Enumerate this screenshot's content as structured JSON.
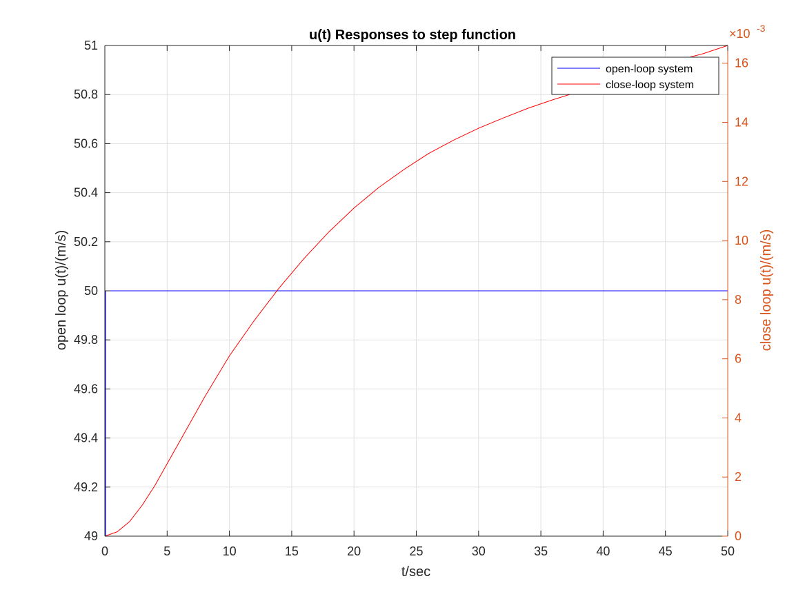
{
  "chart_data": {
    "type": "line",
    "title": "u(t) Responses to step function",
    "xlabel": "t/sec",
    "ylabel_left": "open loop u(t)/(m/s)",
    "ylabel_right": "close loop u(t)/(m/s)",
    "right_exponent_base": "×10",
    "right_exponent_power": "-3",
    "xlim": [
      0,
      50
    ],
    "ylim_left": [
      49,
      51
    ],
    "ylim_right": [
      0,
      0.0166
    ],
    "x_ticks": [
      "0",
      "5",
      "10",
      "15",
      "20",
      "25",
      "30",
      "35",
      "40",
      "45",
      "50"
    ],
    "left_ticks": [
      "49",
      "49.2",
      "49.4",
      "49.6",
      "49.8",
      "50",
      "50.2",
      "50.4",
      "50.6",
      "50.8",
      "51"
    ],
    "right_ticks": [
      "0",
      "2",
      "4",
      "6",
      "8",
      "10",
      "12",
      "14",
      "16"
    ],
    "grid": true,
    "legend_position": "top-right",
    "colors": {
      "open_loop": "#0000ff",
      "close_loop": "#ff0000",
      "right_axis": "#d95319",
      "left_axis": "#262626",
      "grid": "#e0e0e0"
    },
    "series": [
      {
        "name": "open-loop system",
        "axis": "left",
        "x": [
          0,
          50
        ],
        "y": [
          50,
          50
        ]
      },
      {
        "name": "close-loop system",
        "axis": "right",
        "x": [
          0,
          1,
          2,
          3,
          4,
          5,
          6,
          7,
          8,
          9,
          10,
          12,
          14,
          16,
          18,
          20,
          22,
          24,
          26,
          28,
          30,
          32,
          34,
          36,
          38,
          40,
          42,
          44,
          46,
          48,
          50
        ],
        "y": [
          0,
          0.00015,
          0.0005,
          0.00105,
          0.0017,
          0.00245,
          0.0032,
          0.00395,
          0.0047,
          0.0054,
          0.0061,
          0.0073,
          0.0084,
          0.0094,
          0.0103,
          0.0111,
          0.0118,
          0.0124,
          0.01295,
          0.0134,
          0.0138,
          0.01415,
          0.01448,
          0.01477,
          0.01503,
          0.01535,
          0.01565,
          0.0159,
          0.0161,
          0.01632,
          0.0166
        ]
      }
    ]
  }
}
